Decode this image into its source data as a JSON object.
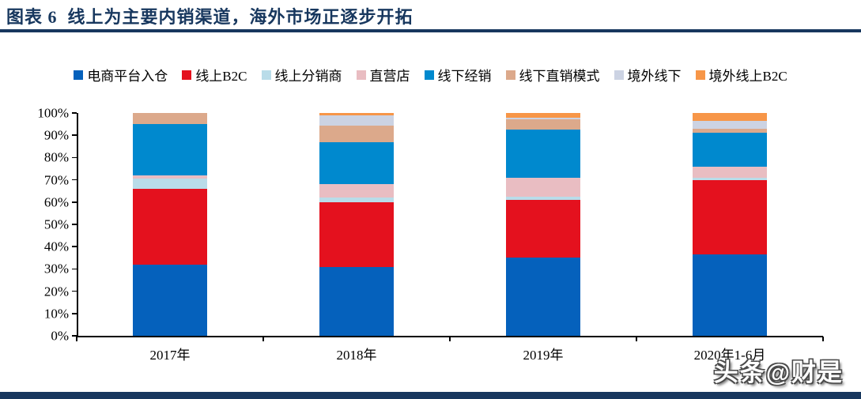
{
  "header": {
    "title": "图表 6  线上为主要内销渠道，海外市场正逐步开拓"
  },
  "watermark": {
    "text": "头条@财是"
  },
  "colors": {
    "navy": "#17375E",
    "axis": "#000000",
    "background": "#FFFFFF"
  },
  "chart_data": {
    "type": "bar",
    "stacked": true,
    "unit": "%",
    "title": "线上为主要内销渠道，海外市场正逐步开拓",
    "categories": [
      "2017年",
      "2018年",
      "2019年",
      "2020年1-6月"
    ],
    "series": [
      {
        "name": "电商平台入仓",
        "color": "#0561BC",
        "values": [
          32,
          31,
          35,
          36.5
        ]
      },
      {
        "name": "线上B2C",
        "color": "#E4111E",
        "values": [
          34,
          29,
          26,
          33.5
        ]
      },
      {
        "name": "线上分销商",
        "color": "#B9DCE9",
        "values": [
          4.5,
          2,
          1.5,
          1
        ]
      },
      {
        "name": "直营店",
        "color": "#E9BDC2",
        "values": [
          1.5,
          6,
          8.5,
          5
        ]
      },
      {
        "name": "线下经销",
        "color": "#0089CE",
        "values": [
          23,
          19,
          21.5,
          15
        ]
      },
      {
        "name": "线下直销模式",
        "color": "#DCA98B",
        "values": [
          5,
          7.5,
          4.5,
          2
        ]
      },
      {
        "name": "境外线下",
        "color": "#CCD3E3",
        "values": [
          0,
          4.5,
          1,
          3.5
        ]
      },
      {
        "name": "境外线上B2C",
        "color": "#F79648",
        "values": [
          0,
          1,
          2,
          3.5
        ]
      }
    ],
    "ylim": [
      0,
      100
    ],
    "ytick_step": 10,
    "ytick_labels": [
      "0%",
      "10%",
      "20%",
      "30%",
      "40%",
      "50%",
      "60%",
      "70%",
      "80%",
      "90%",
      "100%"
    ],
    "legend_position": "top",
    "grid": false
  }
}
